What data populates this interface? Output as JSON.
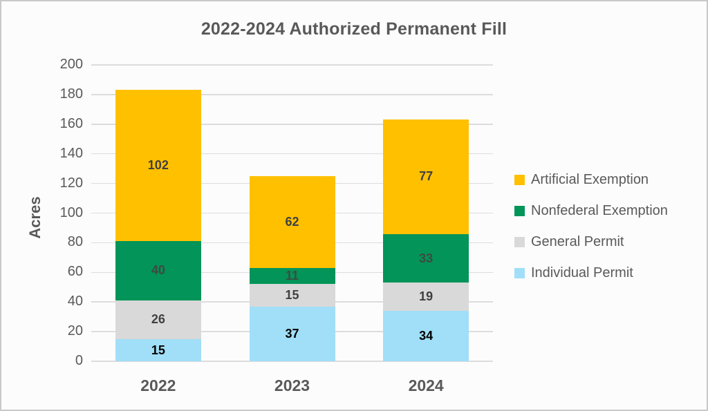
{
  "page": {
    "background_color": "#FCFCFC",
    "border_color": "#C9C9C9",
    "text_color": "#595959"
  },
  "chart_data": {
    "type": "bar",
    "stacked": true,
    "title": "2022-2024 Authorized Permanent Fill",
    "xlabel": "",
    "ylabel": "Acres",
    "categories": [
      "2022",
      "2023",
      "2024"
    ],
    "series": [
      {
        "name": "Individual Permit",
        "color": "#A0DFF7",
        "label_color": "#000000",
        "values": [
          15,
          37,
          34
        ]
      },
      {
        "name": "General Permit",
        "color": "#D9D9D9",
        "label_color": "#404040",
        "values": [
          26,
          15,
          19
        ]
      },
      {
        "name": "Nonfederal Exemption",
        "color": "#029458",
        "label_color": "#3D4B42",
        "values": [
          40,
          11,
          33
        ]
      },
      {
        "name": "Artificial Exemption",
        "color": "#FFC000",
        "label_color": "#404040",
        "values": [
          102,
          62,
          77
        ]
      }
    ],
    "ylim": [
      0,
      200
    ],
    "ytick_step": 20,
    "ytick_labels": [
      "0",
      "20",
      "40",
      "60",
      "80",
      "100",
      "120",
      "140",
      "160",
      "180",
      "200"
    ],
    "grid": true,
    "gridline_color": "#DCDCDC",
    "legend_position": "right",
    "legend_order": [
      "Artificial Exemption",
      "Nonfederal Exemption",
      "General Permit",
      "Individual Permit"
    ],
    "data_labels_shown": true
  }
}
